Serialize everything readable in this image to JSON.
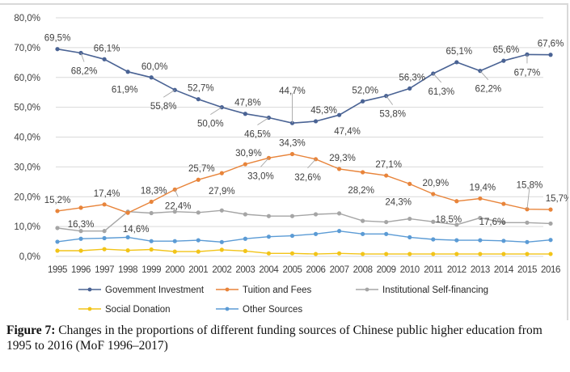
{
  "caption": {
    "label": "Figure 7:",
    "text": " Changes in the proportions of different funding sources of Chinese public higher education from 1995 to 2016 (MoF 1996–2017)"
  },
  "chart_data": {
    "type": "line",
    "title": "",
    "xlabel": "",
    "ylabel": "",
    "ylim": [
      0,
      80
    ],
    "yticks": [
      "0,0%",
      "10,0%",
      "20,0%",
      "30,0%",
      "40,0%",
      "50,0%",
      "60,0%",
      "70,0%",
      "80,0%"
    ],
    "ytick_values": [
      0,
      10,
      20,
      30,
      40,
      50,
      60,
      70,
      80
    ],
    "grid": true,
    "legend_position": "bottom",
    "x": [
      "1995",
      "1996",
      "1997",
      "1998",
      "1999",
      "2000",
      "2001",
      "2002",
      "2003",
      "2004",
      "2005",
      "2006",
      "2007",
      "2008",
      "2009",
      "2010",
      "2011",
      "2012",
      "2013",
      "2014",
      "2015",
      "2016"
    ],
    "series": [
      {
        "name": "Government Investment",
        "legend_label": "Govemment Investment",
        "color": "#4a6394",
        "values": [
          69.5,
          68.2,
          66.1,
          61.9,
          60.0,
          55.8,
          52.7,
          50.0,
          47.8,
          46.5,
          44.7,
          45.3,
          47.4,
          52.0,
          53.8,
          56.3,
          61.3,
          65.1,
          62.2,
          65.6,
          67.7,
          67.6
        ],
        "labels": [
          "69,5%",
          "68,2%",
          "66,1%",
          "61,9%",
          "60,0%",
          "55,8%",
          "52,7%",
          "50,0%",
          "47,8%",
          "46,5%",
          "44,7%",
          "45,3%",
          "47,4%",
          "52,0%",
          "53,8%",
          "56,3%",
          "61,3%",
          "65,1%",
          "62,2%",
          "65,6%",
          "67,7%",
          "67,6%"
        ]
      },
      {
        "name": "Tuition and Fees",
        "legend_label": "Tuition and Fees",
        "color": "#e8843a",
        "values": [
          15.2,
          16.3,
          17.4,
          14.6,
          18.3,
          22.4,
          25.7,
          27.9,
          30.9,
          33.0,
          34.3,
          32.6,
          29.3,
          28.2,
          27.1,
          24.3,
          20.9,
          18.5,
          19.4,
          17.6,
          15.8,
          15.7
        ],
        "labels": [
          "15,2%",
          "16,3%",
          "17,4%",
          "14,6%",
          "18,3%",
          "22,4%",
          "25,7%",
          "27,9%",
          "30,9%",
          "33,0%",
          "34,3%",
          "32,6%",
          "29,3%",
          "28,2%",
          "27,1%",
          "24,3%",
          "20,9%",
          "18,5%",
          "19,4%",
          "17,6%",
          "15,8%",
          "15,7%"
        ]
      },
      {
        "name": "Institutional Self-financing",
        "legend_label": "Institutional Self-financing",
        "color": "#a5a5a5",
        "values": [
          9.5,
          8.5,
          8.5,
          15.0,
          14.5,
          15.0,
          14.7,
          15.4,
          14.1,
          13.5,
          13.5,
          14.1,
          14.4,
          11.9,
          11.5,
          12.6,
          11.6,
          10.6,
          12.9,
          11.3,
          11.3,
          11.0
        ]
      },
      {
        "name": "Social Donation",
        "legend_label": "Social Donation",
        "color": "#f2c418",
        "values": [
          1.9,
          1.9,
          2.4,
          2.0,
          2.3,
          1.6,
          1.6,
          2.2,
          1.8,
          1.0,
          1.0,
          0.8,
          1.0,
          0.8,
          0.8,
          0.8,
          0.8,
          0.8,
          0.8,
          0.8,
          0.8,
          0.8
        ]
      },
      {
        "name": "Other Sources",
        "legend_label": "Other Sources",
        "color": "#5b9bd5",
        "values": [
          4.9,
          5.9,
          6.1,
          6.4,
          5.1,
          5.1,
          5.4,
          4.8,
          5.9,
          6.6,
          6.9,
          7.5,
          8.5,
          7.5,
          7.5,
          6.4,
          5.7,
          5.4,
          5.4,
          5.2,
          4.8,
          5.5
        ]
      }
    ]
  }
}
